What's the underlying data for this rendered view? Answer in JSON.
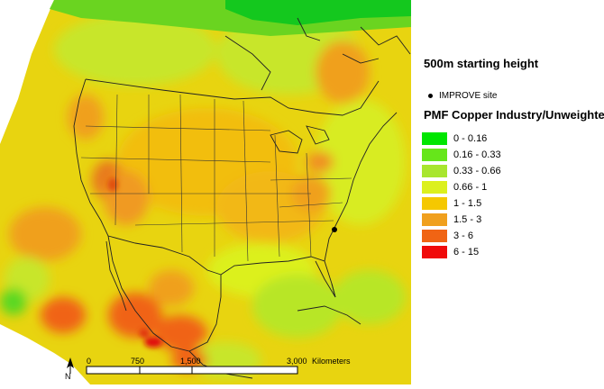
{
  "legend": {
    "height_label": "500m starting height",
    "site_label": "IMPROVE site",
    "layer_title": "PMF Copper Industry/Unweighted",
    "classes": [
      {
        "label": "0 - 0.16",
        "color": "#00e600"
      },
      {
        "label": "0.16 - 0.33",
        "color": "#66e61a"
      },
      {
        "label": "0.33 - 0.66",
        "color": "#a8e62e"
      },
      {
        "label": "0.66 - 1",
        "color": "#dcf01e"
      },
      {
        "label": "1 - 1.5",
        "color": "#f5c800"
      },
      {
        "label": "1.5 - 3",
        "color": "#f0a01e"
      },
      {
        "label": "3 - 6",
        "color": "#f06414"
      },
      {
        "label": "6 - 15",
        "color": "#f00a0a"
      }
    ]
  },
  "scale": {
    "north": "N",
    "ticks": [
      "0",
      "750",
      "1,500",
      "3,000"
    ],
    "unit": "Kilometers"
  }
}
